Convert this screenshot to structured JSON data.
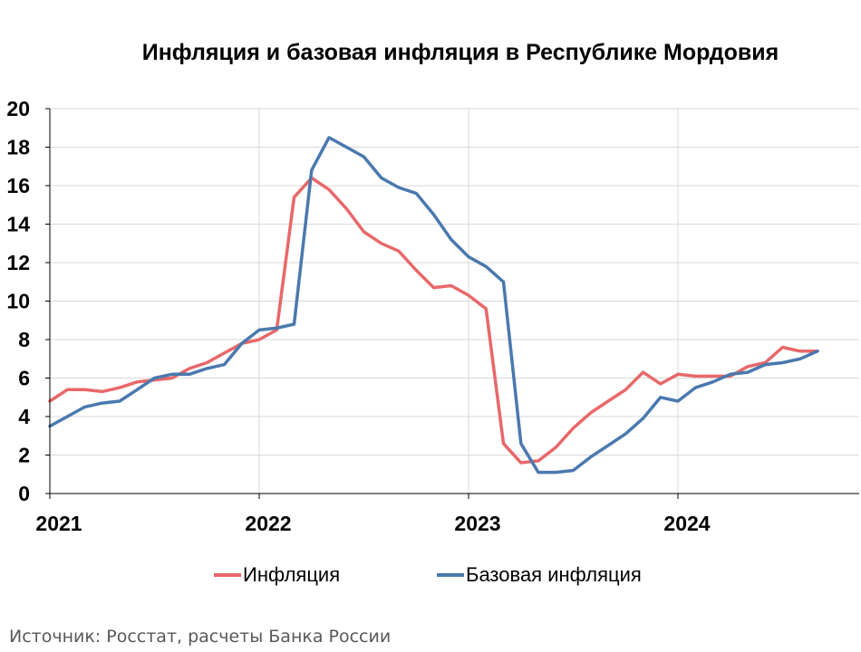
{
  "chart_data": {
    "type": "line",
    "title": "Инфляция и базовая инфляция в Республике Мордовия",
    "xlabel": "",
    "ylabel": "",
    "ylim": [
      0,
      20
    ],
    "yticks": [
      0,
      2,
      4,
      6,
      8,
      10,
      12,
      14,
      16,
      18,
      20
    ],
    "xticks": [
      "2021",
      "2022",
      "2023",
      "2024"
    ],
    "grid": true,
    "legend_position": "bottom",
    "x": [
      "2021-01",
      "2021-02",
      "2021-03",
      "2021-04",
      "2021-05",
      "2021-06",
      "2021-07",
      "2021-08",
      "2021-09",
      "2021-10",
      "2021-11",
      "2021-12",
      "2022-01",
      "2022-02",
      "2022-03",
      "2022-04",
      "2022-05",
      "2022-06",
      "2022-07",
      "2022-08",
      "2022-09",
      "2022-10",
      "2022-11",
      "2022-12",
      "2023-01",
      "2023-02",
      "2023-03",
      "2023-04",
      "2023-05",
      "2023-06",
      "2023-07",
      "2023-08",
      "2023-09",
      "2023-10",
      "2023-11",
      "2023-12",
      "2024-01",
      "2024-02",
      "2024-03",
      "2024-04",
      "2024-05",
      "2024-06",
      "2024-07",
      "2024-08",
      "2024-09"
    ],
    "series": [
      {
        "name": "Инфляция",
        "color": "#E8686A",
        "values": [
          4.8,
          5.4,
          5.4,
          5.3,
          5.5,
          5.8,
          5.9,
          6.0,
          6.5,
          6.8,
          7.3,
          7.8,
          8.0,
          8.5,
          15.4,
          16.4,
          15.8,
          14.8,
          13.6,
          13.0,
          12.6,
          11.6,
          10.7,
          10.8,
          10.3,
          9.6,
          2.6,
          1.6,
          1.7,
          2.4,
          3.4,
          4.2,
          4.8,
          5.4,
          6.3,
          5.7,
          6.2,
          6.1,
          6.1,
          6.1,
          6.6,
          6.8,
          7.6,
          7.4,
          7.4
        ]
      },
      {
        "name": "Базовая инфляция",
        "color": "#4A79AE",
        "values": [
          3.5,
          4.0,
          4.5,
          4.7,
          4.8,
          5.4,
          6.0,
          6.2,
          6.2,
          6.5,
          6.7,
          7.8,
          8.5,
          8.6,
          8.8,
          16.8,
          18.5,
          18.0,
          17.5,
          16.4,
          15.9,
          15.6,
          14.5,
          13.2,
          12.3,
          11.8,
          11.0,
          2.6,
          1.1,
          1.1,
          1.2,
          1.9,
          2.5,
          3.1,
          3.9,
          5.0,
          4.8,
          5.5,
          5.8,
          6.2,
          6.3,
          6.7,
          6.8,
          7.0,
          7.4
        ]
      }
    ]
  },
  "source": "Источник: Росстат, расчеты Банка России"
}
